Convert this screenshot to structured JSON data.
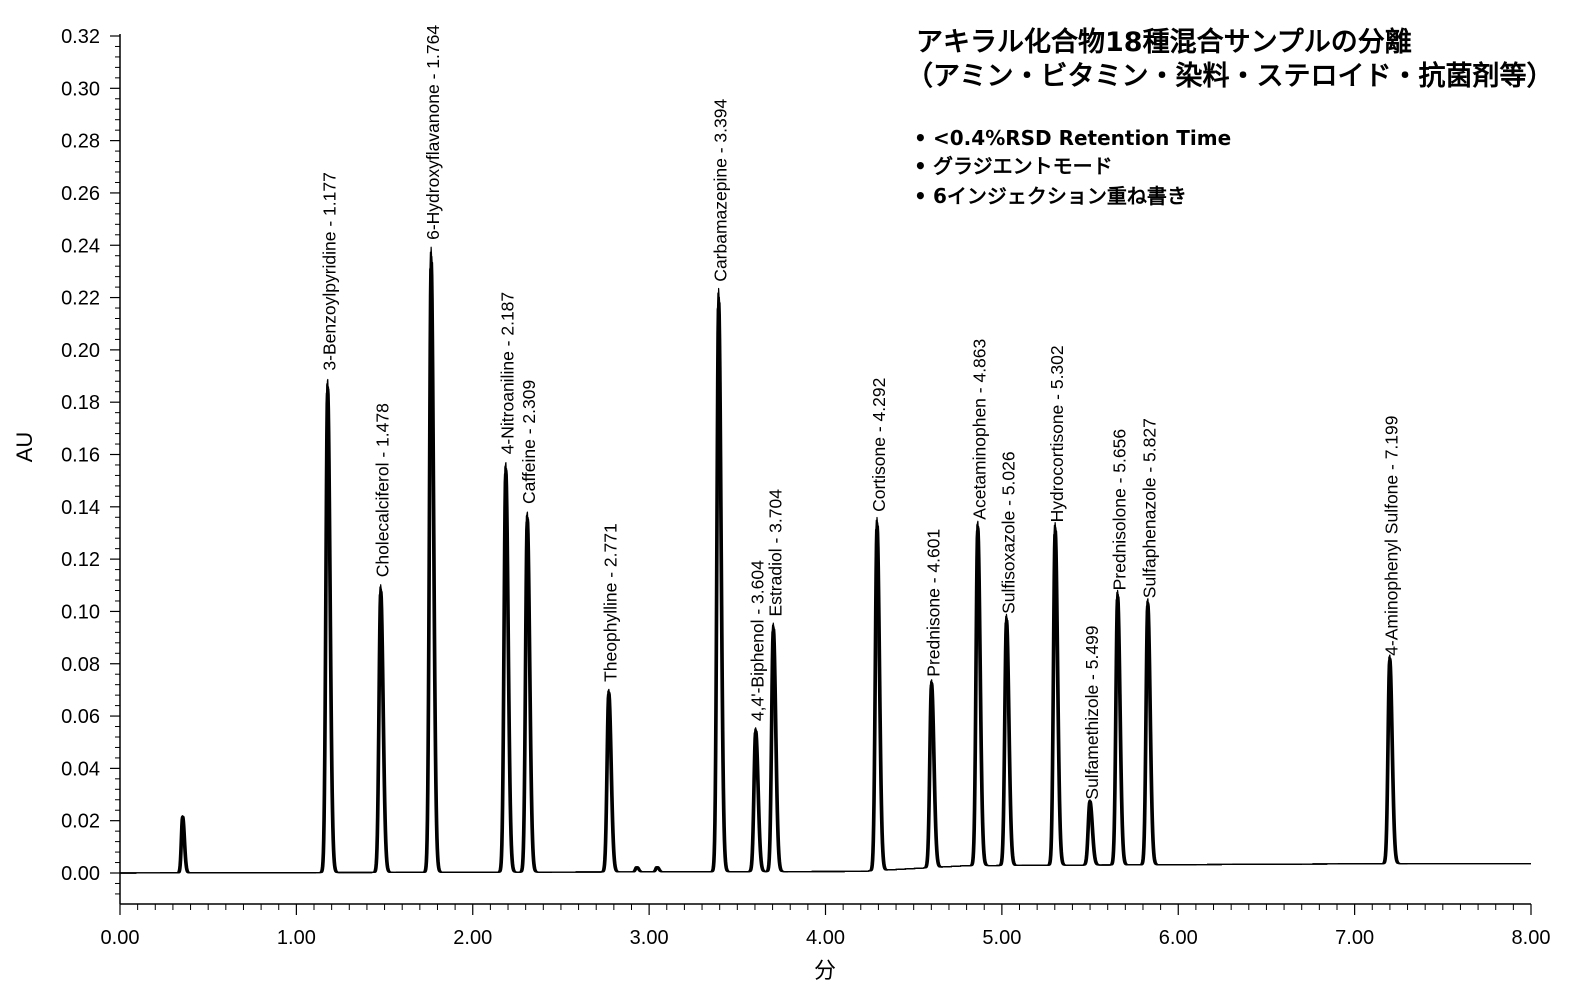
{
  "chart_data": {
    "type": "line",
    "title": [
      "アキラル化合物18種混合サンプルの分離",
      "（アミン・ビタミン・染料・ステロイド・抗菌剤等）"
    ],
    "notes": [
      "<0.4%RSD Retention Time",
      "グラジエントモード",
      "6インジェクション重ね書き"
    ],
    "xlabel": "分",
    "ylabel": "AU",
    "xlim": [
      0,
      8
    ],
    "ylim": [
      -0.012,
      0.32
    ],
    "x_ticks": [
      "0.00",
      "1.00",
      "2.00",
      "3.00",
      "4.00",
      "5.00",
      "6.00",
      "7.00",
      "8.00"
    ],
    "y_ticks": [
      "0.00",
      "0.02",
      "0.04",
      "0.06",
      "0.08",
      "0.10",
      "0.12",
      "0.14",
      "0.16",
      "0.18",
      "0.20",
      "0.22",
      "0.24",
      "0.26",
      "0.28",
      "0.30",
      "0.32"
    ],
    "grid": false,
    "color": "#000000",
    "peaks": [
      {
        "label": "3-Benzoylpyridine - 1.177",
        "rt": 1.177,
        "height": 0.189
      },
      {
        "label": "Cholecalciferol - 1.478",
        "rt": 1.478,
        "height": 0.11
      },
      {
        "label": "6-Hydroxyflavanone - 1.764",
        "rt": 1.764,
        "height": 0.239
      },
      {
        "label": "4-Nitroaniline - 2.187",
        "rt": 2.187,
        "height": 0.157
      },
      {
        "label": "Caffeine - 2.309",
        "rt": 2.309,
        "height": 0.138
      },
      {
        "label": "Theophylline - 2.771",
        "rt": 2.771,
        "height": 0.07
      },
      {
        "label": "Carbamazepine - 3.394",
        "rt": 3.394,
        "height": 0.223
      },
      {
        "label": "4,4'-Biphenol - 3.604",
        "rt": 3.604,
        "height": 0.055
      },
      {
        "label": "Estradiol - 3.704",
        "rt": 3.704,
        "height": 0.095
      },
      {
        "label": "Cortisone - 4.292",
        "rt": 4.292,
        "height": 0.135
      },
      {
        "label": "Prednisone - 4.601",
        "rt": 4.601,
        "height": 0.072
      },
      {
        "label": "Acetaminophen - 4.863",
        "rt": 4.863,
        "height": 0.132
      },
      {
        "label": "Sulfisoxazole - 5.026",
        "rt": 5.026,
        "height": 0.096
      },
      {
        "label": "Hydrocortisone - 5.302",
        "rt": 5.302,
        "height": 0.131
      },
      {
        "label": "Sulfamethizole - 5.499",
        "rt": 5.499,
        "height": 0.025
      },
      {
        "label": "Prednisolone - 5.656",
        "rt": 5.656,
        "height": 0.105
      },
      {
        "label": "Sulfaphenazole - 5.827",
        "rt": 5.827,
        "height": 0.102
      },
      {
        "label": "4-Aminophenyl Sulfone - 7.199",
        "rt": 7.199,
        "height": 0.08
      }
    ],
    "minor_peaks": [
      {
        "rt": 0.355,
        "height": 0.022
      },
      {
        "rt": 2.93,
        "height": 0.002
      },
      {
        "rt": 3.045,
        "height": 0.002
      }
    ]
  }
}
